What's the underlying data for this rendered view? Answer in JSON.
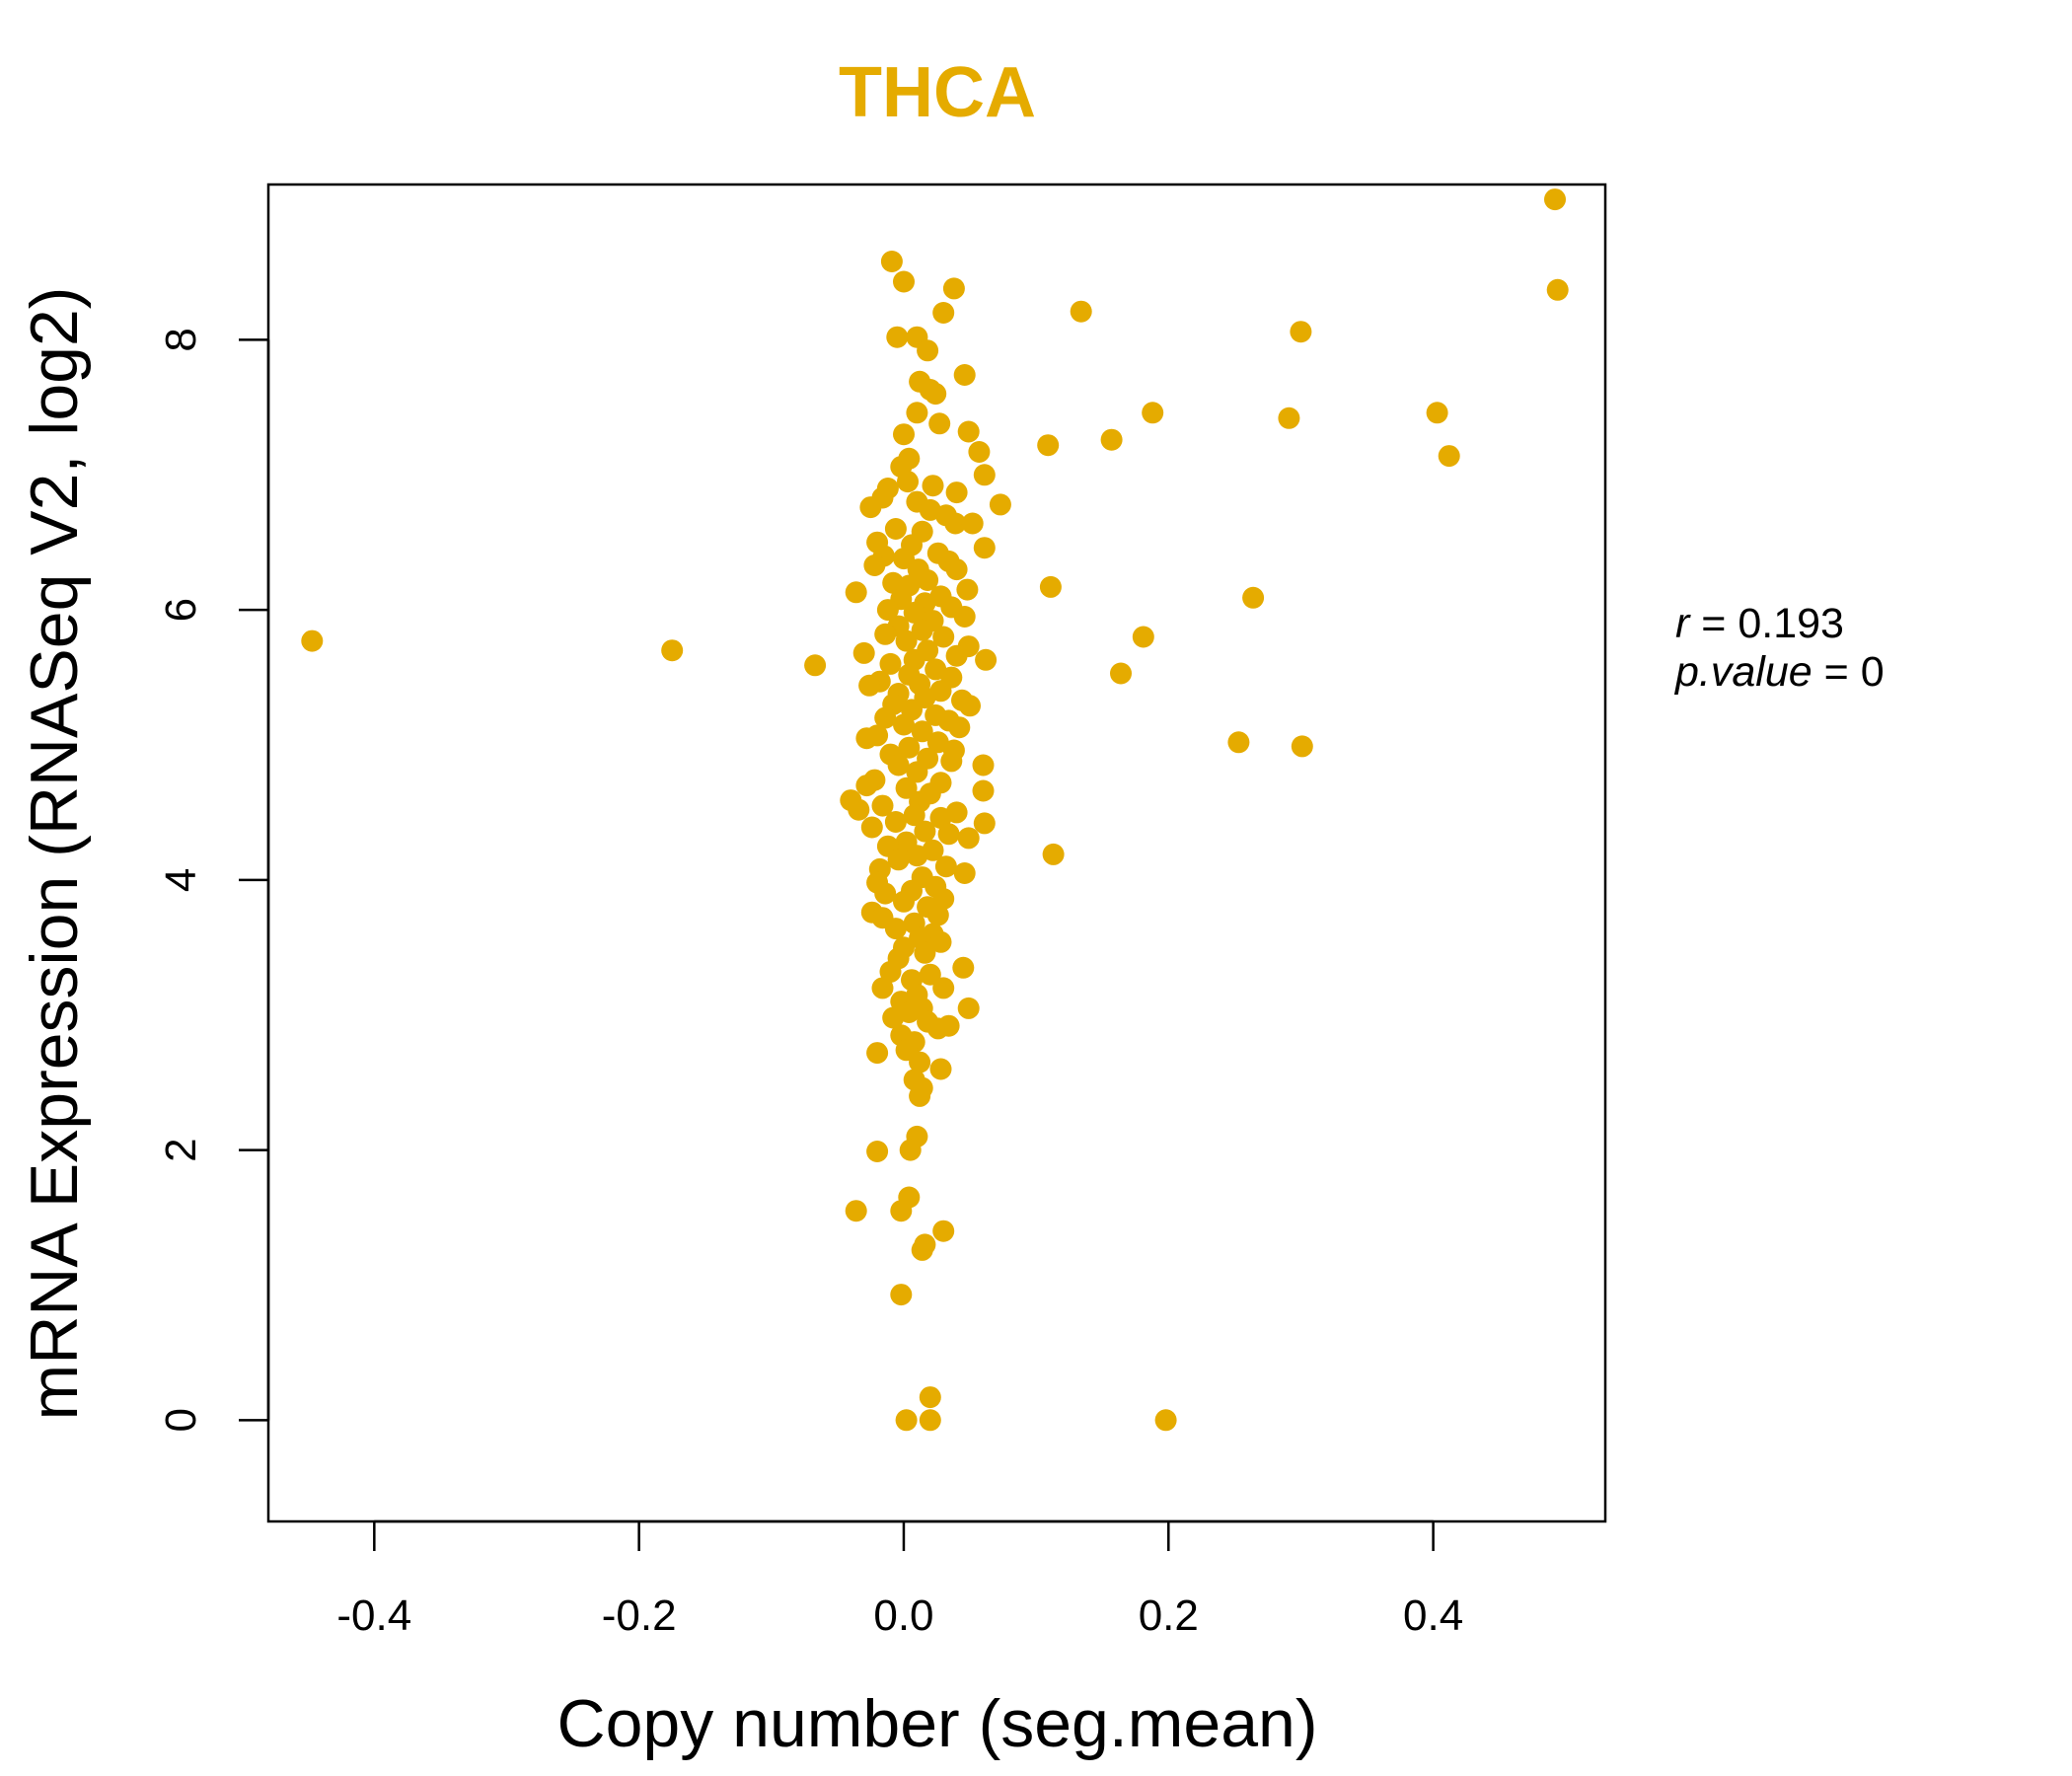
{
  "chart_data": {
    "type": "scatter",
    "title": "THCA",
    "title_color": "#E5AB00",
    "point_color": "#E5AB00",
    "xlabel": "Copy number (seg.mean)",
    "ylabel": "mRNA Expression (RNASeq V2, log2)",
    "xlim": [
      -0.48,
      0.53
    ],
    "ylim": [
      -0.75,
      9.15
    ],
    "xticks": [
      -0.4,
      -0.2,
      0.0,
      0.2,
      0.4
    ],
    "xtick_labels": [
      "-0.4",
      "-0.2",
      "0.0",
      "0.2",
      "0.4"
    ],
    "yticks": [
      0,
      2,
      4,
      6,
      8
    ],
    "ytick_labels": [
      "0",
      "2",
      "4",
      "6",
      "8"
    ],
    "grid": false,
    "legend": "none",
    "annotation": {
      "r_label": "r",
      "r_value": "0.193",
      "p_label": "p.value",
      "p_value": "0"
    },
    "points": [
      [
        -0.447,
        5.77
      ],
      [
        -0.175,
        5.7
      ],
      [
        -0.067,
        5.59
      ],
      [
        0.492,
        9.04
      ],
      [
        0.494,
        8.37
      ],
      [
        0.3,
        8.06
      ],
      [
        0.403,
        7.46
      ],
      [
        0.412,
        7.14
      ],
      [
        0.291,
        7.42
      ],
      [
        0.134,
        8.21
      ],
      [
        0.188,
        7.46
      ],
      [
        0.157,
        7.26
      ],
      [
        0.109,
        7.22
      ],
      [
        0.111,
        6.17
      ],
      [
        0.264,
        6.09
      ],
      [
        0.181,
        5.8
      ],
      [
        0.164,
        5.53
      ],
      [
        0.253,
        5.02
      ],
      [
        0.301,
        4.99
      ],
      [
        0.113,
        4.19
      ],
      [
        0.198,
        0.0
      ],
      [
        -0.009,
        8.58
      ],
      [
        0.0,
        8.43
      ],
      [
        0.038,
        8.38
      ],
      [
        0.03,
        8.2
      ],
      [
        -0.005,
        8.02
      ],
      [
        0.01,
        8.02
      ],
      [
        0.018,
        7.92
      ],
      [
        0.046,
        7.74
      ],
      [
        0.012,
        7.69
      ],
      [
        0.02,
        7.63
      ],
      [
        0.024,
        7.6
      ],
      [
        0.01,
        7.46
      ],
      [
        0.027,
        7.38
      ],
      [
        0.049,
        7.32
      ],
      [
        0.0,
        7.3
      ],
      [
        0.057,
        7.17
      ],
      [
        0.004,
        7.12
      ],
      [
        -0.002,
        7.06
      ],
      [
        0.061,
        7.0
      ],
      [
        0.003,
        6.95
      ],
      [
        -0.012,
        6.9
      ],
      [
        0.022,
        6.92
      ],
      [
        0.04,
        6.87
      ],
      [
        -0.016,
        6.83
      ],
      [
        0.073,
        6.78
      ],
      [
        -0.025,
        6.76
      ],
      [
        0.01,
        6.8
      ],
      [
        0.02,
        6.74
      ],
      [
        0.032,
        6.7
      ],
      [
        0.039,
        6.64
      ],
      [
        0.052,
        6.64
      ],
      [
        -0.006,
        6.6
      ],
      [
        0.014,
        6.58
      ],
      [
        -0.02,
        6.5
      ],
      [
        0.006,
        6.48
      ],
      [
        0.061,
        6.46
      ],
      [
        0.026,
        6.42
      ],
      [
        -0.015,
        6.4
      ],
      [
        0.0,
        6.38
      ],
      [
        0.034,
        6.36
      ],
      [
        -0.022,
        6.33
      ],
      [
        0.011,
        6.3
      ],
      [
        0.04,
        6.3
      ],
      [
        0.018,
        6.22
      ],
      [
        -0.008,
        6.2
      ],
      [
        0.004,
        6.18
      ],
      [
        0.048,
        6.15
      ],
      [
        -0.036,
        6.13
      ],
      [
        0.028,
        6.1
      ],
      [
        -0.002,
        6.08
      ],
      [
        0.016,
        6.05
      ],
      [
        0.036,
        6.02
      ],
      [
        -0.012,
        6.0
      ],
      [
        0.008,
        5.98
      ],
      [
        0.046,
        5.95
      ],
      [
        0.022,
        5.92
      ],
      [
        -0.004,
        5.88
      ],
      [
        0.014,
        5.85
      ],
      [
        -0.014,
        5.82
      ],
      [
        0.03,
        5.8
      ],
      [
        0.002,
        5.77
      ],
      [
        0.049,
        5.73
      ],
      [
        0.018,
        5.7
      ],
      [
        -0.03,
        5.68
      ],
      [
        0.04,
        5.66
      ],
      [
        0.008,
        5.63
      ],
      [
        0.062,
        5.63
      ],
      [
        -0.01,
        5.6
      ],
      [
        0.024,
        5.56
      ],
      [
        0.004,
        5.52
      ],
      [
        0.036,
        5.5
      ],
      [
        -0.018,
        5.47
      ],
      [
        0.012,
        5.45
      ],
      [
        -0.026,
        5.44
      ],
      [
        0.028,
        5.4
      ],
      [
        -0.004,
        5.38
      ],
      [
        0.016,
        5.35
      ],
      [
        0.044,
        5.33
      ],
      [
        -0.008,
        5.3
      ],
      [
        0.05,
        5.29
      ],
      [
        0.006,
        5.26
      ],
      [
        0.024,
        5.22
      ],
      [
        -0.014,
        5.2
      ],
      [
        0.034,
        5.18
      ],
      [
        0.0,
        5.15
      ],
      [
        0.042,
        5.13
      ],
      [
        0.014,
        5.1
      ],
      [
        -0.02,
        5.07
      ],
      [
        -0.028,
        5.05
      ],
      [
        0.026,
        5.02
      ],
      [
        0.004,
        4.98
      ],
      [
        0.038,
        4.96
      ],
      [
        -0.01,
        4.93
      ],
      [
        0.018,
        4.9
      ],
      [
        0.036,
        4.88
      ],
      [
        -0.004,
        4.85
      ],
      [
        0.06,
        4.85
      ],
      [
        0.01,
        4.8
      ],
      [
        -0.022,
        4.74
      ],
      [
        0.028,
        4.72
      ],
      [
        -0.028,
        4.7
      ],
      [
        0.002,
        4.68
      ],
      [
        0.06,
        4.66
      ],
      [
        0.02,
        4.64
      ],
      [
        -0.04,
        4.59
      ],
      [
        0.012,
        4.58
      ],
      [
        -0.016,
        4.55
      ],
      [
        -0.034,
        4.52
      ],
      [
        0.04,
        4.5
      ],
      [
        0.008,
        4.48
      ],
      [
        0.028,
        4.46
      ],
      [
        -0.006,
        4.43
      ],
      [
        0.061,
        4.42
      ],
      [
        -0.024,
        4.39
      ],
      [
        0.016,
        4.36
      ],
      [
        0.034,
        4.34
      ],
      [
        0.049,
        4.31
      ],
      [
        0.002,
        4.28
      ],
      [
        -0.012,
        4.25
      ],
      [
        0.022,
        4.22
      ],
      [
        0.01,
        4.18
      ],
      [
        -0.004,
        4.15
      ],
      [
        0.032,
        4.1
      ],
      [
        -0.018,
        4.08
      ],
      [
        0.046,
        4.05
      ],
      [
        0.014,
        4.02
      ],
      [
        -0.02,
        3.98
      ],
      [
        0.024,
        3.95
      ],
      [
        0.006,
        3.92
      ],
      [
        -0.014,
        3.9
      ],
      [
        0.03,
        3.86
      ],
      [
        0.0,
        3.84
      ],
      [
        0.018,
        3.8
      ],
      [
        -0.024,
        3.76
      ],
      [
        0.026,
        3.74
      ],
      [
        -0.016,
        3.72
      ],
      [
        0.008,
        3.68
      ],
      [
        -0.006,
        3.64
      ],
      [
        0.022,
        3.6
      ],
      [
        0.012,
        3.57
      ],
      [
        0.028,
        3.54
      ],
      [
        0.0,
        3.5
      ],
      [
        0.016,
        3.46
      ],
      [
        -0.004,
        3.42
      ],
      [
        0.045,
        3.35
      ],
      [
        -0.01,
        3.32
      ],
      [
        0.02,
        3.3
      ],
      [
        0.006,
        3.26
      ],
      [
        -0.016,
        3.2
      ],
      [
        0.03,
        3.2
      ],
      [
        0.01,
        3.15
      ],
      [
        -0.002,
        3.1
      ],
      [
        0.014,
        3.05
      ],
      [
        0.049,
        3.05
      ],
      [
        0.004,
        3.02
      ],
      [
        -0.008,
        2.98
      ],
      [
        0.018,
        2.95
      ],
      [
        0.034,
        2.92
      ],
      [
        0.026,
        2.9
      ],
      [
        -0.002,
        2.85
      ],
      [
        0.008,
        2.8
      ],
      [
        -0.02,
        2.72
      ],
      [
        0.002,
        2.74
      ],
      [
        0.012,
        2.65
      ],
      [
        0.028,
        2.6
      ],
      [
        0.008,
        2.52
      ],
      [
        0.014,
        2.46
      ],
      [
        0.012,
        2.4
      ],
      [
        0.01,
        2.1
      ],
      [
        -0.02,
        1.99
      ],
      [
        0.005,
        2.0
      ],
      [
        0.004,
        1.65
      ],
      [
        -0.036,
        1.55
      ],
      [
        -0.002,
        1.55
      ],
      [
        0.03,
        1.4
      ],
      [
        0.016,
        1.3
      ],
      [
        0.014,
        1.26
      ],
      [
        -0.002,
        0.93
      ],
      [
        0.02,
        0.17
      ],
      [
        0.002,
        0.0
      ],
      [
        0.02,
        0.0
      ]
    ]
  }
}
